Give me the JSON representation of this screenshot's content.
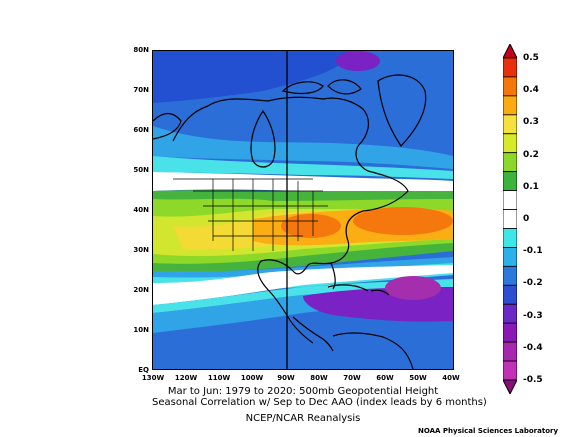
{
  "map": {
    "lat_ticks": [
      "80N",
      "70N",
      "60N",
      "50N",
      "40N",
      "30N",
      "20N",
      "10N",
      "EQ"
    ],
    "lon_ticks": [
      "130W",
      "120W",
      "110W",
      "100W",
      "90W",
      "80W",
      "70W",
      "60W",
      "50W",
      "40W"
    ],
    "region": "North America",
    "marked_meridian": "90W"
  },
  "title": {
    "line1": "Mar to Jun: 1979 to 2020: 500mb Geopotential Height",
    "line2": "Seasonal Correlation w/ Sep to Dec AAO (index leads by 6 months)"
  },
  "footer": {
    "dataset": "NCEP/NCAR Reanalysis",
    "lab": "NOAA Physical Sciences Laboratory"
  },
  "colorbar": {
    "labels": [
      "0.5",
      "0.4",
      "0.3",
      "0.2",
      "0.1",
      "0",
      "-0.1",
      "-0.2",
      "-0.3",
      "-0.4",
      "-0.5"
    ],
    "colors": [
      "#c4001a",
      "#e8300c",
      "#f5770c",
      "#fbab10",
      "#f5e03c",
      "#d6ea2a",
      "#8cd82a",
      "#3cb43c",
      "#ffffff",
      "#ffffff",
      "#3fe6e6",
      "#2bb0ea",
      "#2b78de",
      "#2c4ed2",
      "#6a28c8",
      "#8a18b6",
      "#a628b0",
      "#c232b6",
      "#8a0c7a"
    ]
  },
  "field_colors": {
    "deep_blue": "#2250d0",
    "blue": "#2b6ed8",
    "light_blue": "#31a4e8",
    "cyan": "#48e2e8",
    "white": "#ffffff",
    "green": "#46b43c",
    "lime": "#8ed82a",
    "yellow_green": "#d2e630",
    "yellow": "#f3da34",
    "orange_light": "#fbad14",
    "orange": "#f4780e",
    "purple": "#7a22c4",
    "magenta": "#a42eae"
  }
}
